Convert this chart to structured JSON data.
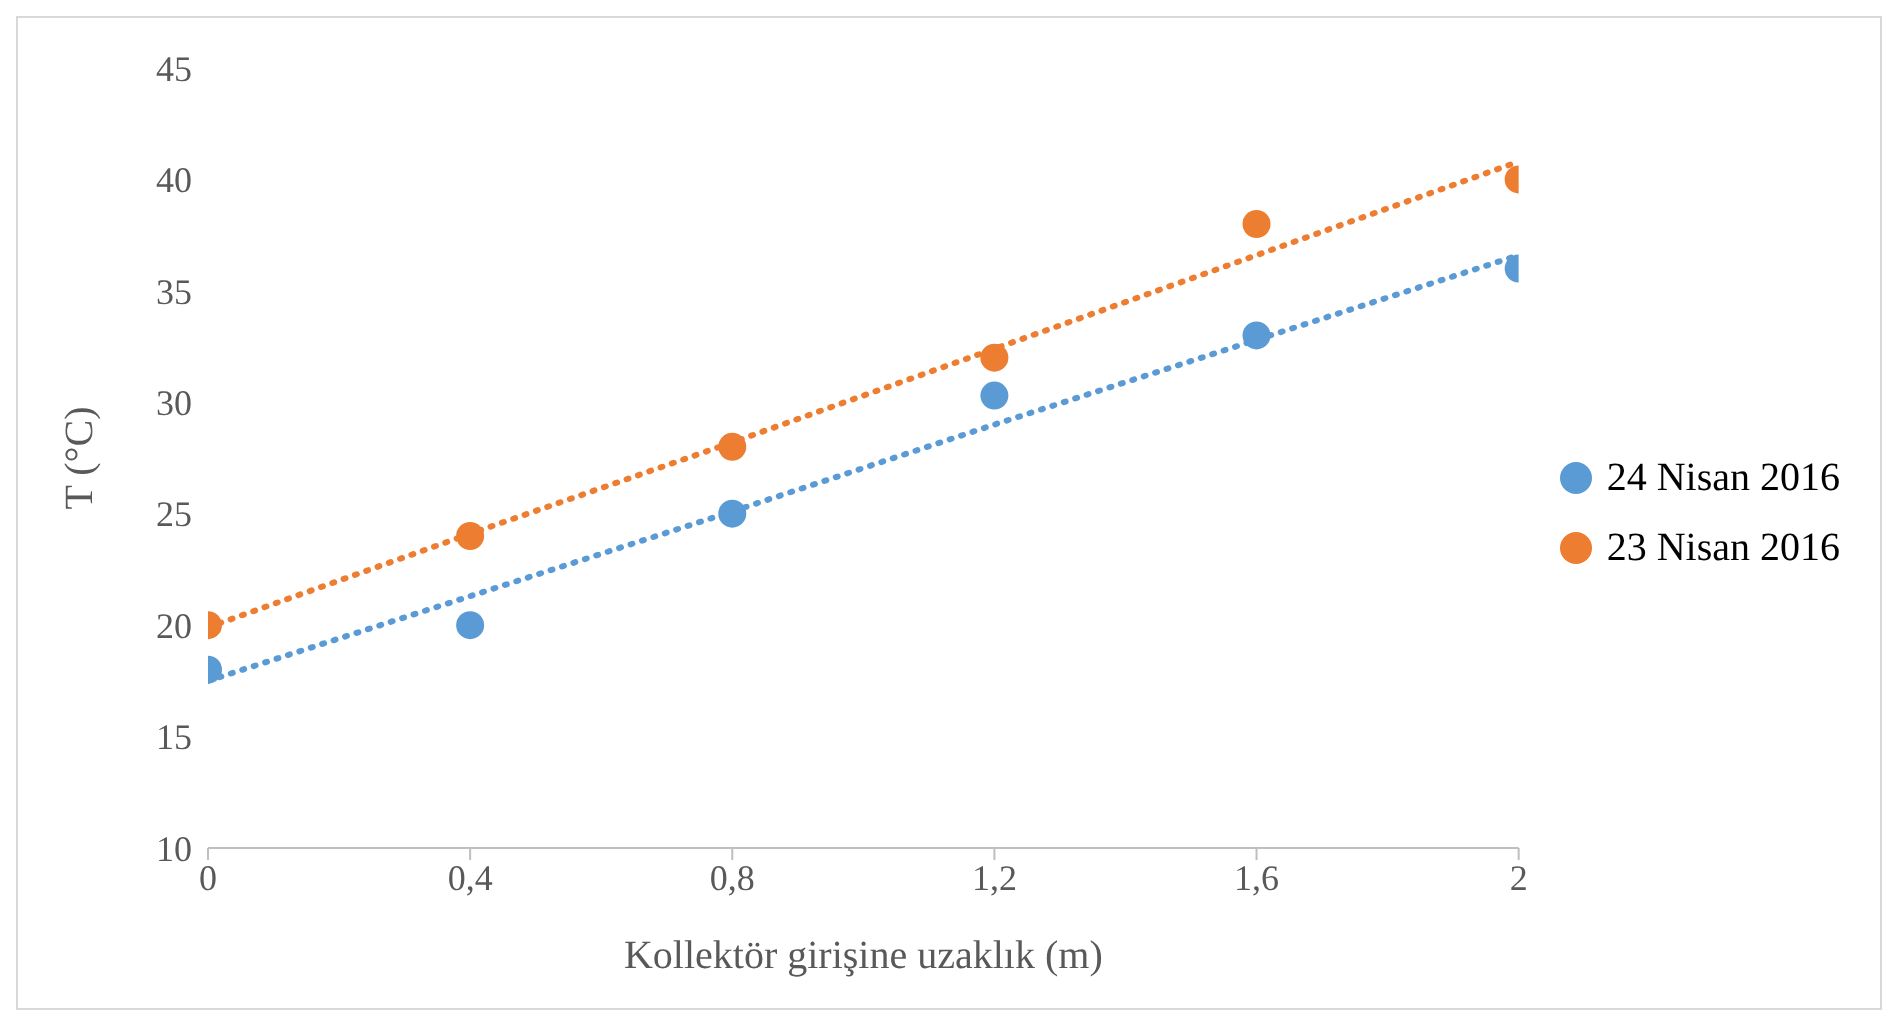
{
  "chart_data": {
    "type": "scatter",
    "xlabel": "Kollektör girişine uzaklık (m)",
    "ylabel": "T (°C)",
    "x": [
      0,
      0.4,
      0.8,
      1.2,
      1.6,
      2
    ],
    "series": [
      {
        "name": "24 Nisan 2016",
        "color": "#5b9bd5",
        "values": [
          18,
          20,
          25,
          30.3,
          33,
          36
        ]
      },
      {
        "name": "23 Nisan 2016",
        "color": "#ed7d31",
        "values": [
          20,
          24,
          28,
          32,
          38,
          40
        ]
      },
      {
        "type": "line",
        "color": "#5b9bd5",
        "values": [
          17.5,
          21.3,
          25.1,
          29.0,
          32.8,
          36.6
        ],
        "line_style": "dotted",
        "marker": "none"
      },
      {
        "type": "line",
        "color": "#ed7d31",
        "values": [
          19.9,
          24.1,
          28.2,
          32.4,
          36.6,
          40.8
        ],
        "line_style": "dotted",
        "marker": "none"
      }
    ],
    "xlim": [
      0,
      2
    ],
    "xticks": [
      0,
      {
        "value": 0.4,
        "label": "0,4"
      },
      {
        "value": 0.8,
        "label": "0,8"
      },
      {
        "value": 1.2,
        "label": "1,2"
      },
      {
        "value": 1.6,
        "label": "1,6"
      },
      2
    ],
    "ylim": [
      10,
      45
    ],
    "yticks": [
      10,
      15,
      20,
      25,
      30,
      35,
      40,
      45
    ],
    "grid": false,
    "legend": "right",
    "marker": "circle"
  }
}
